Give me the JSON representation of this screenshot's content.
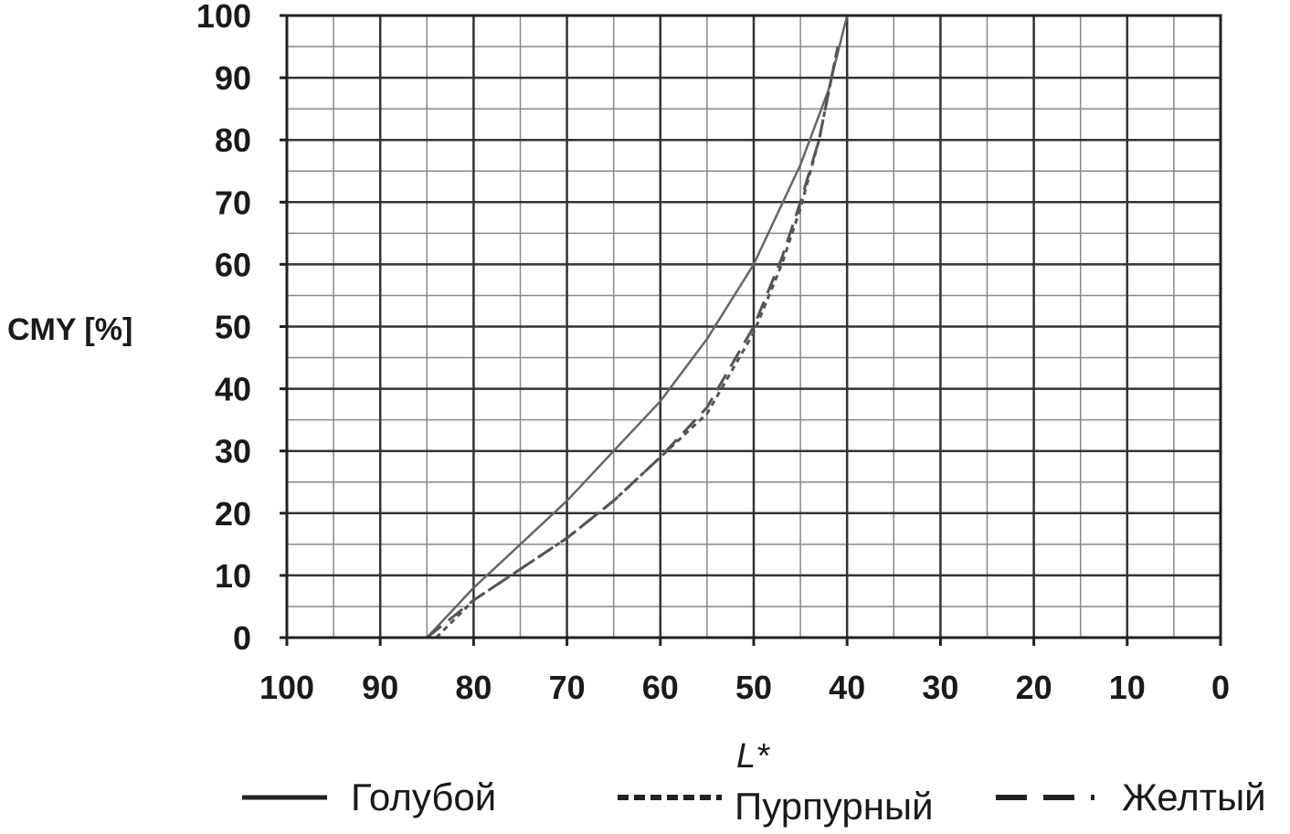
{
  "chart_data": {
    "type": "line",
    "title": "",
    "xlabel": "L*",
    "ylabel": "CMY [%]",
    "xlim": [
      100,
      0
    ],
    "ylim": [
      0,
      100
    ],
    "x_ticks": [
      "100",
      "90",
      "80",
      "70",
      "60",
      "50",
      "40",
      "30",
      "20",
      "10",
      "0"
    ],
    "y_ticks": [
      "0",
      "10",
      "20",
      "30",
      "40",
      "50",
      "60",
      "70",
      "80",
      "90",
      "100"
    ],
    "grid": true,
    "legend_position": "bottom",
    "series": [
      {
        "name": "Голубой",
        "style": "solid",
        "x": [
          85,
          80,
          75,
          70,
          65,
          60,
          55,
          50,
          45,
          42,
          40
        ],
        "y": [
          0,
          8,
          15,
          22,
          30,
          38,
          48,
          60,
          76,
          88,
          100
        ]
      },
      {
        "name": "Пурпурный",
        "style": "dotted",
        "x": [
          84,
          80,
          75,
          70,
          65,
          60,
          55,
          50,
          47,
          45,
          43,
          41
        ],
        "y": [
          0,
          6,
          11,
          16,
          22,
          29,
          36,
          49,
          60,
          69,
          80,
          95
        ]
      },
      {
        "name": "Желтый",
        "style": "dashed",
        "x": [
          85,
          80,
          75,
          70,
          65,
          60,
          55,
          50,
          47,
          45,
          43,
          41
        ],
        "y": [
          0,
          6,
          11,
          16,
          22,
          29,
          37,
          50,
          61,
          70,
          80,
          95
        ]
      }
    ],
    "colors": {
      "line": "#555555",
      "grid": "#333333",
      "text": "#1a1a1a"
    }
  }
}
